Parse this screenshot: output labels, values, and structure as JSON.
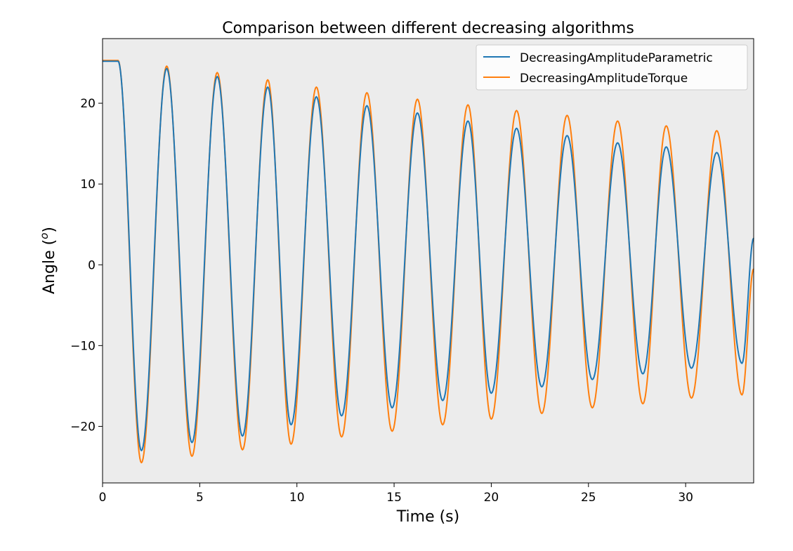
{
  "chart_data": {
    "type": "line",
    "title": "Comparison between different decreasing algorithms",
    "xlabel": "Time (s)",
    "ylabel_main": "Angle (",
    "ylabel_sup": "o",
    "ylabel_end": ")",
    "xlim": [
      0,
      33.5
    ],
    "ylim": [
      -27,
      28
    ],
    "xticks": [
      0,
      5,
      10,
      15,
      20,
      25,
      30
    ],
    "yticks": [
      -20,
      -10,
      0,
      10,
      20
    ],
    "ytick_labels": [
      "−20",
      "−10",
      "0",
      "10",
      "20"
    ],
    "grid": false,
    "background": "#ececec",
    "legend_position": "top-right",
    "series": [
      {
        "name": "DecreasingAmplitudeTorque",
        "color": "#ff7f0e",
        "x": [
          0,
          0.8,
          2.0,
          3.3,
          4.6,
          5.9,
          7.2,
          8.5,
          9.7,
          11.0,
          12.3,
          13.6,
          14.9,
          16.2,
          17.5,
          18.8,
          20.0,
          21.3,
          22.6,
          23.9,
          25.2,
          26.5,
          27.8,
          29.0,
          30.3,
          31.6,
          32.9,
          33.5
        ],
        "y": [
          25.3,
          25.3,
          -24.5,
          24.6,
          -23.7,
          23.8,
          -22.9,
          22.9,
          -22.2,
          22.0,
          -21.3,
          21.3,
          -20.6,
          20.5,
          -19.8,
          19.8,
          -19.1,
          19.1,
          -18.4,
          18.5,
          -17.7,
          17.8,
          -17.2,
          17.2,
          -16.5,
          16.6,
          -16.1,
          -0.5
        ]
      },
      {
        "name": "DecreasingAmplitudeParametric",
        "color": "#1f77b4",
        "x": [
          0,
          0.8,
          2.0,
          3.3,
          4.6,
          5.9,
          7.2,
          8.5,
          9.7,
          11.0,
          12.3,
          13.6,
          14.9,
          16.2,
          17.5,
          18.8,
          20.0,
          21.3,
          22.6,
          23.9,
          25.2,
          26.5,
          27.8,
          29.0,
          30.3,
          31.6,
          32.9,
          33.5
        ],
        "y": [
          25.2,
          25.2,
          -23.0,
          24.3,
          -22.0,
          23.3,
          -21.2,
          22.0,
          -19.8,
          20.8,
          -18.7,
          19.7,
          -17.7,
          18.8,
          -16.8,
          17.8,
          -15.9,
          16.9,
          -15.1,
          16.0,
          -14.2,
          15.1,
          -13.5,
          14.6,
          -12.8,
          13.9,
          -12.2,
          3.3
        ]
      }
    ]
  }
}
